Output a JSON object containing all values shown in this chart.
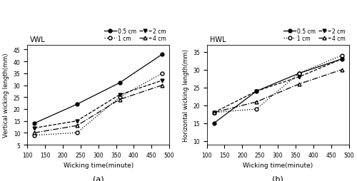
{
  "x": [
    120,
    240,
    360,
    480
  ],
  "vwl": {
    "title": "VWL",
    "ylabel": "Vertical wicking length(mm)",
    "xlabel": "Wicking time(minute)",
    "ylim": [
      5,
      47
    ],
    "yticks": [
      5,
      10,
      15,
      20,
      25,
      30,
      35,
      40,
      45
    ],
    "series": {
      "0.5cm": {
        "y": [
          14,
          22,
          31,
          43
        ],
        "linestyle": "-",
        "marker": "o",
        "fillstyle": "full",
        "color": "black"
      },
      "1cm": {
        "y": [
          9,
          10,
          25,
          35
        ],
        "linestyle": ":",
        "marker": "o",
        "fillstyle": "none",
        "color": "black"
      },
      "2cm": {
        "y": [
          12,
          15,
          26,
          32
        ],
        "linestyle": "--",
        "marker": "v",
        "fillstyle": "full",
        "color": "black"
      },
      "4cm": {
        "y": [
          10,
          13,
          24,
          30
        ],
        "linestyle": "-.",
        "marker": "^",
        "fillstyle": "none",
        "color": "black"
      }
    }
  },
  "hwl": {
    "title": "HWL",
    "ylabel": "Horizontal wicking length(mm)",
    "xlabel": "Wicking time(minute)",
    "ylim": [
      9,
      37
    ],
    "yticks": [
      10,
      15,
      20,
      25,
      30,
      35
    ],
    "series": {
      "0.5cm": {
        "y": [
          15,
          24,
          29,
          33
        ],
        "linestyle": "-",
        "marker": "o",
        "fillstyle": "full",
        "color": "black"
      },
      "1cm": {
        "y": [
          18,
          19,
          29,
          34
        ],
        "linestyle": ":",
        "marker": "o",
        "fillstyle": "none",
        "color": "black"
      },
      "2cm": {
        "y": [
          18,
          24,
          28,
          33
        ],
        "linestyle": "--",
        "marker": "v",
        "fillstyle": "full",
        "color": "black"
      },
      "4cm": {
        "y": [
          18,
          21,
          26,
          30
        ],
        "linestyle": "-.",
        "marker": "^",
        "fillstyle": "none",
        "color": "black"
      }
    }
  },
  "legend_labels": [
    "0.5 cm",
    "1 cm",
    "2 cm",
    "4 cm"
  ],
  "xlim": [
    100,
    500
  ],
  "xticks": [
    100,
    150,
    200,
    250,
    300,
    350,
    400,
    450,
    500
  ],
  "subfig_labels": [
    "(a)",
    "(b)"
  ],
  "background_color": "#ffffff"
}
